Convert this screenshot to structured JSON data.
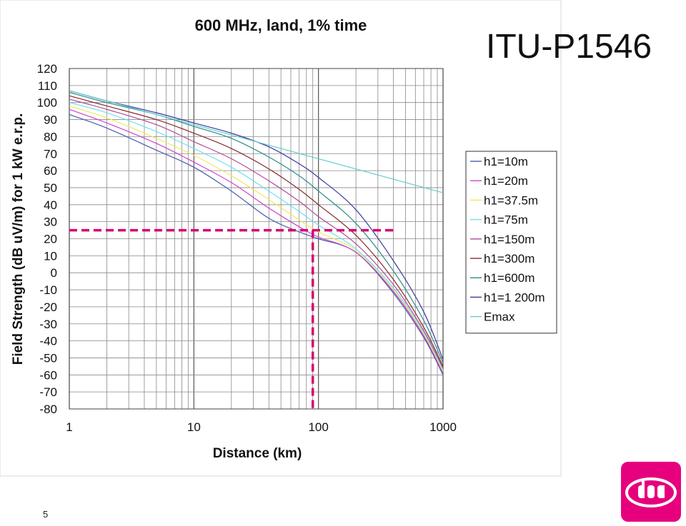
{
  "slide": {
    "title": "ITU-P1546",
    "page_number": "5"
  },
  "colors": {
    "marker": "#d6006f",
    "logo": "#e6007e"
  },
  "logo": {
    "name": "dna"
  },
  "chart_data": {
    "type": "line",
    "title": "600 MHz, land, 1% time",
    "xlabel": "Distance (km)",
    "ylabel": "Field Strength (dB uV/m) for 1 kW e.r.p.",
    "x_scale": "log",
    "xlim": [
      1,
      1000
    ],
    "ylim": [
      -80,
      120
    ],
    "x_ticks": [
      "1",
      "10",
      "100",
      "1000"
    ],
    "y_ticks": [
      "120",
      "110",
      "100",
      "90",
      "80",
      "70",
      "60",
      "50",
      "40",
      "30",
      "20",
      "10",
      "0",
      "-10",
      "-20",
      "-30",
      "-40",
      "-50",
      "-60",
      "-70",
      "-80"
    ],
    "grid": true,
    "legend_position": "right",
    "series": [
      {
        "name": "h1=10m",
        "color": "#4a5ab0",
        "x": [
          1,
          2,
          5,
          10,
          20,
          40,
          70,
          100,
          200,
          400,
          700,
          1000
        ],
        "y": [
          93,
          85,
          72,
          62,
          48,
          32,
          24,
          20,
          12,
          -12,
          -38,
          -60
        ]
      },
      {
        "name": "h1=20m",
        "color": "#cc44cc",
        "x": [
          1,
          2,
          5,
          10,
          20,
          40,
          70,
          100,
          200,
          400,
          700,
          1000
        ],
        "y": [
          96,
          88,
          76,
          65,
          53,
          38,
          27,
          21,
          12,
          -11,
          -37,
          -59
        ]
      },
      {
        "name": "h1=37.5m",
        "color": "#f0e860",
        "x": [
          1,
          2,
          5,
          10,
          20,
          40,
          70,
          100,
          200,
          400,
          700,
          1000
        ],
        "y": [
          98,
          91,
          79,
          69,
          57,
          43,
          31,
          24,
          13,
          -10,
          -36,
          -58
        ]
      },
      {
        "name": "h1=75m",
        "color": "#6ae0ee",
        "x": [
          1,
          2,
          5,
          10,
          20,
          40,
          70,
          100,
          200,
          400,
          700,
          1000
        ],
        "y": [
          100,
          94,
          83,
          73,
          62,
          48,
          36,
          28,
          14,
          -9,
          -35,
          -57
        ]
      },
      {
        "name": "h1=150m",
        "color": "#b04a9a",
        "x": [
          1,
          2,
          5,
          10,
          20,
          40,
          70,
          100,
          200,
          400,
          700,
          1000
        ],
        "y": [
          102,
          96,
          87,
          77,
          67,
          54,
          42,
          33,
          17,
          -7,
          -34,
          -56
        ]
      },
      {
        "name": "h1=300m",
        "color": "#8a2b30",
        "x": [
          1,
          2,
          5,
          10,
          20,
          40,
          70,
          100,
          200,
          400,
          700,
          1000
        ],
        "y": [
          104,
          98,
          90,
          82,
          73,
          61,
          49,
          40,
          22,
          -4,
          -32,
          -55
        ]
      },
      {
        "name": "h1=600m",
        "color": "#2a8a8a",
        "x": [
          1,
          2,
          5,
          10,
          20,
          40,
          70,
          100,
          200,
          400,
          700,
          1000
        ],
        "y": [
          106,
          100,
          93,
          86,
          79,
          68,
          57,
          48,
          29,
          1,
          -28,
          -53
        ]
      },
      {
        "name": "h1=1 200m",
        "color": "#3a3aa0",
        "x": [
          1,
          2,
          5,
          10,
          20,
          40,
          70,
          100,
          200,
          400,
          700,
          1000
        ],
        "y": [
          107,
          101,
          94,
          88,
          82,
          74,
          64,
          56,
          37,
          7,
          -23,
          -51
        ]
      },
      {
        "name": "Emax",
        "color": "#66cccc",
        "x": [
          1,
          10,
          100,
          1000
        ],
        "y": [
          107,
          87,
          67,
          47
        ]
      }
    ],
    "annotations": [
      {
        "type": "hline",
        "y": 25,
        "x_from": 1,
        "x_to": 400,
        "style": "dashed",
        "color": "#d6006f"
      },
      {
        "type": "vline",
        "x": 90,
        "y_from": -80,
        "y_to": 25,
        "style": "dashed",
        "color": "#d6006f"
      }
    ]
  }
}
